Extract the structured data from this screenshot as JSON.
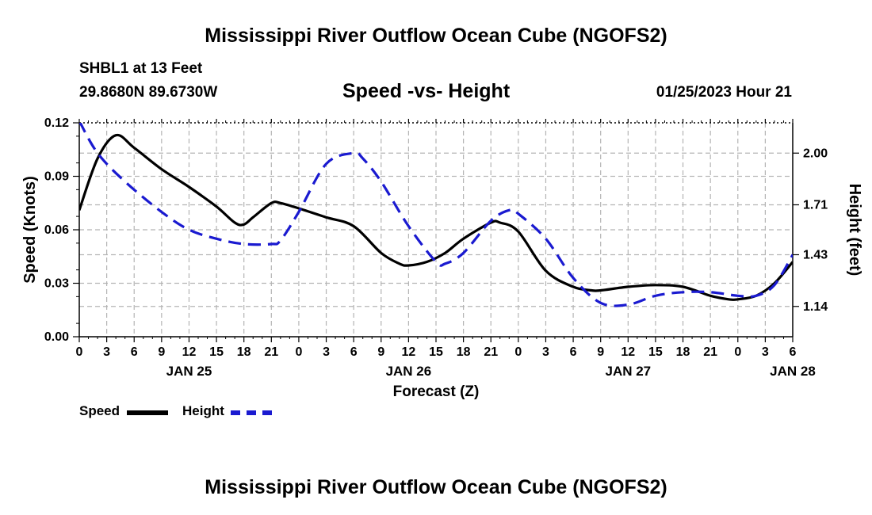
{
  "header": {
    "title": "Mississippi River Outflow Ocean Cube (NGOFS2)",
    "station": "SHBL1 at 13 Feet",
    "coords": "29.8680N  89.6730W",
    "subtitle": "Speed -vs- Height",
    "datetime": "01/25/2023 Hour 21"
  },
  "footer": {
    "title": "Mississippi River Outflow Ocean Cube (NGOFS2)"
  },
  "legend": {
    "speed_label": "Speed",
    "height_label": "Height"
  },
  "colors": {
    "speed": "#000000",
    "height": "#1a1ad0",
    "grid": "#b4b4b4"
  },
  "chart_data": {
    "type": "line",
    "title": "Speed -vs- Height",
    "xlabel": "Forecast (Z)",
    "ylabel_left": "Speed (Knots)",
    "ylabel_right": "Height (feet)",
    "x_unit": "hours since 2023-01-25 00Z",
    "xlim": [
      0,
      78
    ],
    "ylim_left": [
      0,
      0.12
    ],
    "ylim_right": [
      0.97,
      2.17
    ],
    "yticks_left": [
      "0.00",
      "0.03",
      "0.06",
      "0.09",
      "0.12"
    ],
    "yticks_right": [
      "1.14",
      "1.43",
      "1.71",
      "2.00"
    ],
    "xtick_hours": [
      0,
      3,
      6,
      9,
      12,
      15,
      18,
      21,
      24,
      27,
      30,
      33,
      36,
      39,
      42,
      45,
      48,
      51,
      54,
      57,
      60,
      63,
      66,
      69,
      72,
      75,
      78
    ],
    "xtick_labels": [
      "0",
      "3",
      "6",
      "9",
      "12",
      "15",
      "18",
      "21",
      "0",
      "3",
      "6",
      "9",
      "12",
      "15",
      "18",
      "21",
      "0",
      "3",
      "6",
      "9",
      "12",
      "15",
      "18",
      "21",
      "0",
      "3",
      "6"
    ],
    "date_labels": [
      {
        "hour": 12,
        "label": "JAN 25"
      },
      {
        "hour": 36,
        "label": "JAN 26"
      },
      {
        "hour": 60,
        "label": "JAN 27"
      },
      {
        "hour": 78,
        "label": "JAN 28"
      }
    ],
    "series": [
      {
        "name": "Speed",
        "axis": "left",
        "style": "solid",
        "x": [
          0,
          2,
          4,
          6,
          9,
          12,
          15,
          17,
          18,
          19,
          21,
          22,
          24,
          27,
          30,
          33,
          35,
          36,
          38,
          40,
          42,
          45,
          46,
          48,
          51,
          54,
          56,
          57,
          60,
          63,
          66,
          69,
          71,
          72,
          74,
          76,
          78
        ],
        "y": [
          0.071,
          0.1,
          0.113,
          0.106,
          0.094,
          0.084,
          0.073,
          0.064,
          0.063,
          0.067,
          0.075,
          0.075,
          0.072,
          0.067,
          0.062,
          0.047,
          0.041,
          0.04,
          0.042,
          0.047,
          0.055,
          0.064,
          0.064,
          0.059,
          0.037,
          0.028,
          0.026,
          0.026,
          0.028,
          0.029,
          0.028,
          0.023,
          0.021,
          0.021,
          0.023,
          0.03,
          0.042
        ]
      },
      {
        "name": "Height",
        "axis": "right",
        "style": "dashed",
        "x": [
          0,
          2,
          5,
          9,
          12,
          15,
          18,
          21,
          22,
          24,
          27,
          30,
          31,
          33,
          36,
          39,
          40,
          42,
          45,
          47,
          48,
          51,
          54,
          57,
          60,
          63,
          66,
          69,
          72,
          74,
          76,
          78
        ],
        "y": [
          2.18,
          2.0,
          1.84,
          1.67,
          1.57,
          1.52,
          1.49,
          1.49,
          1.51,
          1.67,
          1.94,
          2.0,
          1.97,
          1.84,
          1.59,
          1.39,
          1.38,
          1.44,
          1.62,
          1.68,
          1.66,
          1.52,
          1.3,
          1.16,
          1.15,
          1.2,
          1.22,
          1.22,
          1.2,
          1.2,
          1.26,
          1.43
        ]
      }
    ]
  }
}
